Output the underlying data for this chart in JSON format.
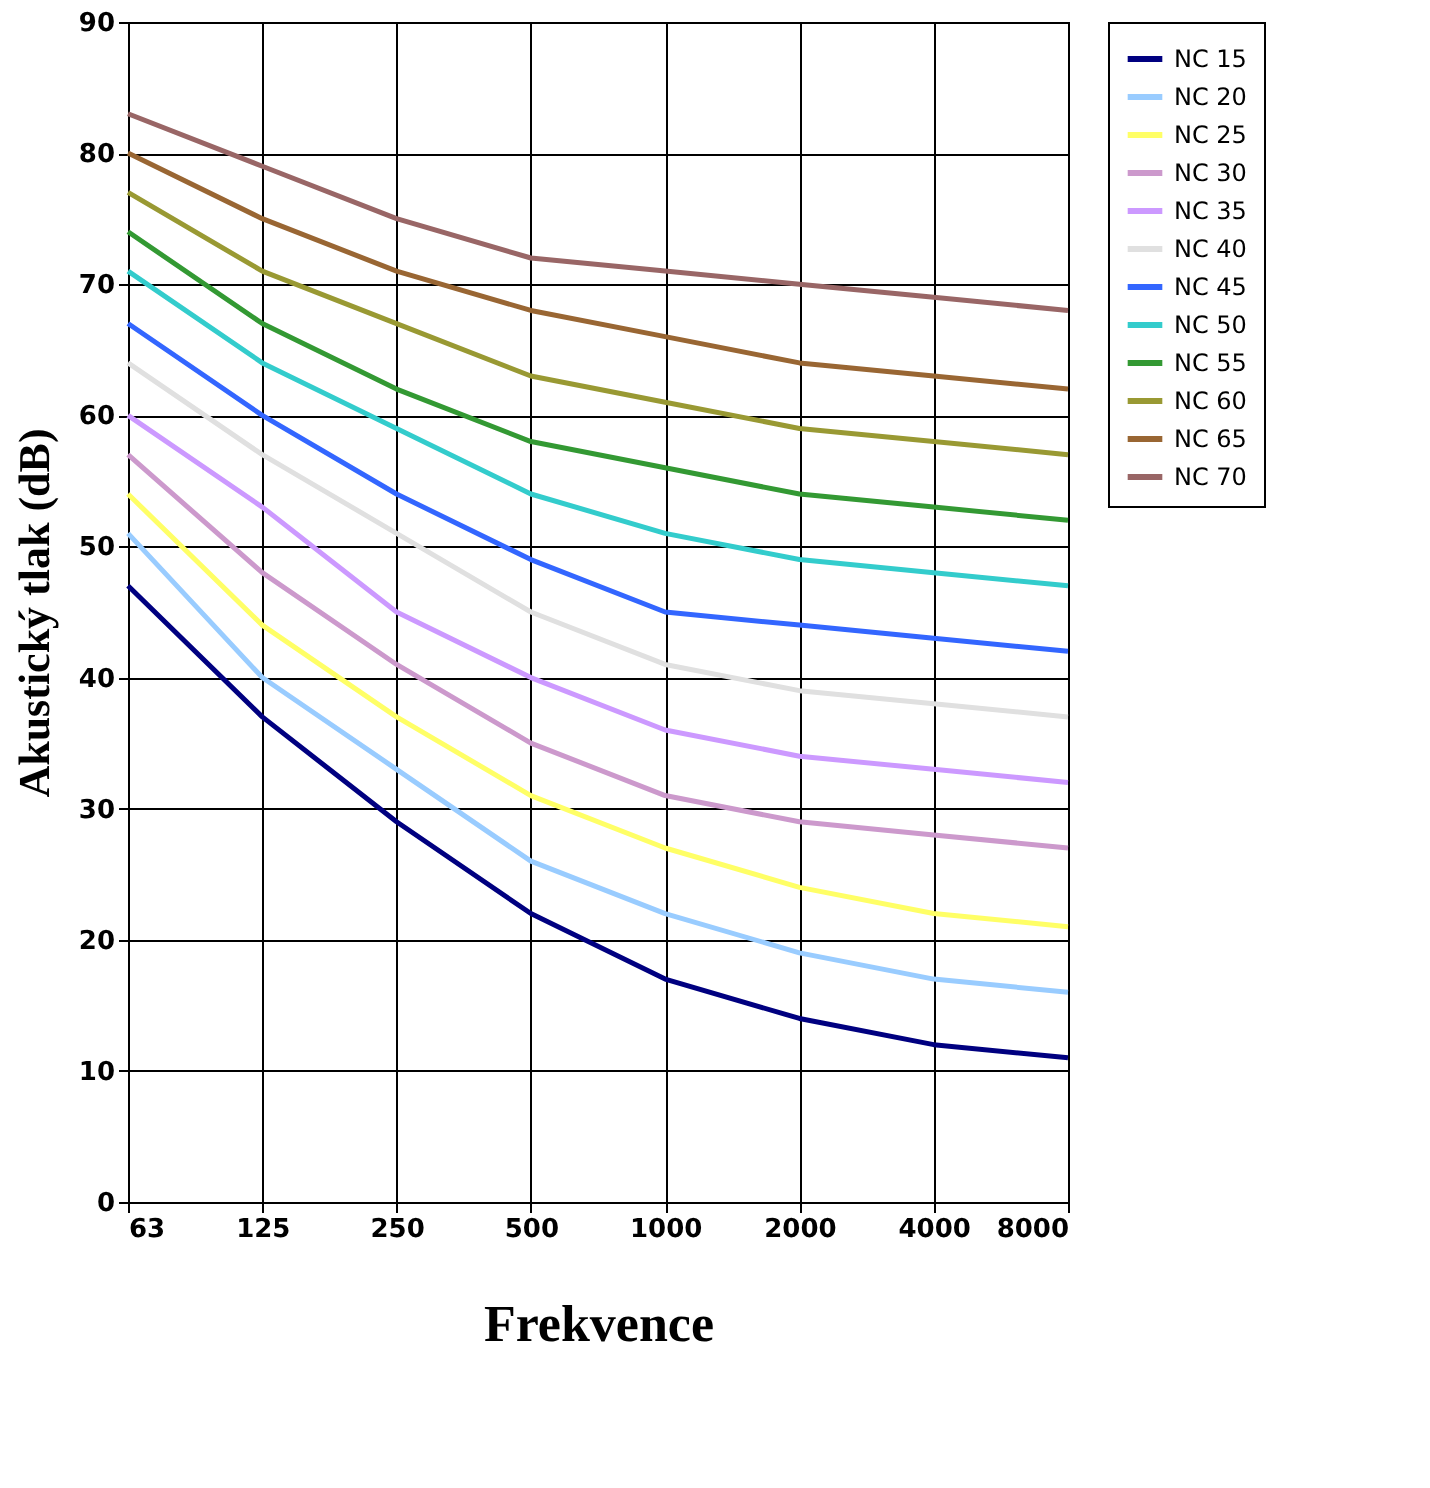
{
  "chart_data": {
    "type": "line",
    "xlabel": "Frekvence",
    "ylabel": "Akustický tlak (dB)",
    "categories": [
      "63",
      "125",
      "250",
      "500",
      "1000",
      "2000",
      "4000",
      "8000"
    ],
    "ylim": [
      0,
      90
    ],
    "yticks": [
      0,
      10,
      20,
      30,
      40,
      50,
      60,
      70,
      80,
      90
    ],
    "grid": true,
    "legend": "right",
    "marker": "none",
    "line_style": "solid",
    "series": [
      {
        "name": "NC 15",
        "color": "#000080",
        "values": [
          47,
          37,
          29,
          22,
          17,
          14,
          12,
          11
        ]
      },
      {
        "name": "NC 20",
        "color": "#99ccff",
        "values": [
          51,
          40,
          33,
          26,
          22,
          19,
          17,
          16
        ]
      },
      {
        "name": "NC 25",
        "color": "#ffff66",
        "values": [
          54,
          44,
          37,
          31,
          27,
          24,
          22,
          21
        ]
      },
      {
        "name": "NC 30",
        "color": "#cc99cc",
        "values": [
          57,
          48,
          41,
          35,
          31,
          29,
          28,
          27
        ]
      },
      {
        "name": "NC 35",
        "color": "#cc99ff",
        "values": [
          60,
          53,
          45,
          40,
          36,
          34,
          33,
          32
        ]
      },
      {
        "name": "NC 40",
        "color": "#e0e0e0",
        "values": [
          64,
          57,
          51,
          45,
          41,
          39,
          38,
          37
        ]
      },
      {
        "name": "NC 45",
        "color": "#3366ff",
        "values": [
          67,
          60,
          54,
          49,
          45,
          44,
          43,
          42
        ]
      },
      {
        "name": "NC 50",
        "color": "#33cccc",
        "values": [
          71,
          64,
          59,
          54,
          51,
          49,
          48,
          47
        ]
      },
      {
        "name": "NC 55",
        "color": "#339933",
        "values": [
          74,
          67,
          62,
          58,
          56,
          54,
          53,
          52
        ]
      },
      {
        "name": "NC 60",
        "color": "#999933",
        "values": [
          77,
          71,
          67,
          63,
          61,
          59,
          58,
          57
        ]
      },
      {
        "name": "NC 65",
        "color": "#996633",
        "values": [
          80,
          75,
          71,
          68,
          66,
          64,
          63,
          62
        ]
      },
      {
        "name": "NC 70",
        "color": "#996666",
        "values": [
          83,
          79,
          75,
          72,
          71,
          70,
          69,
          68
        ]
      }
    ]
  }
}
